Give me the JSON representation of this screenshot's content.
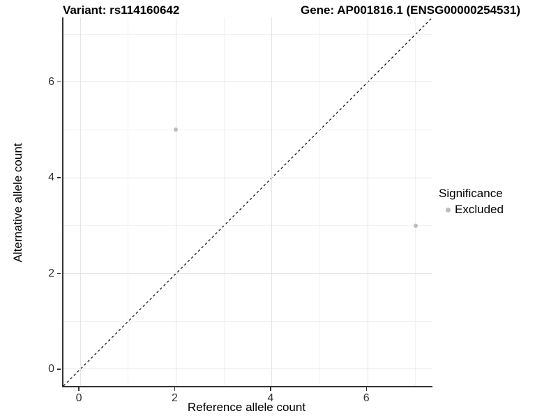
{
  "chart_data": {
    "type": "scatter",
    "title_left": "Variant: rs114160642",
    "title_right": "Gene: AP001816.1 (ENSG00000254531)",
    "xlabel": "Reference allele count",
    "ylabel": "Alternative allele count",
    "xlim": [
      -0.35,
      7.35
    ],
    "ylim": [
      -0.35,
      7.35
    ],
    "x_major_ticks": [
      0,
      2,
      4,
      6
    ],
    "x_minor_ticks": [
      1,
      3,
      5,
      7
    ],
    "y_major_ticks": [
      0,
      2,
      4,
      6
    ],
    "y_minor_ticks": [
      1,
      3,
      5,
      7
    ],
    "grid": true,
    "identity_line": {
      "style": "dashed",
      "from": -0.35,
      "to": 7.35,
      "color": "#000000"
    },
    "series": [
      {
        "name": "Excluded",
        "color": "#bcbcbc",
        "points": [
          {
            "x": 2,
            "y": 5
          },
          {
            "x": 7,
            "y": 3
          }
        ]
      }
    ],
    "legend": {
      "title": "Significance",
      "position": "right",
      "items": [
        {
          "label": "Excluded",
          "color": "#bcbcbc"
        }
      ]
    },
    "colors": {
      "grid_major": "#e6e6e6",
      "grid_minor": "#f2f2f2",
      "axis_line": "#333333",
      "tick_label": "#333333",
      "point": "#bcbcbc"
    }
  }
}
